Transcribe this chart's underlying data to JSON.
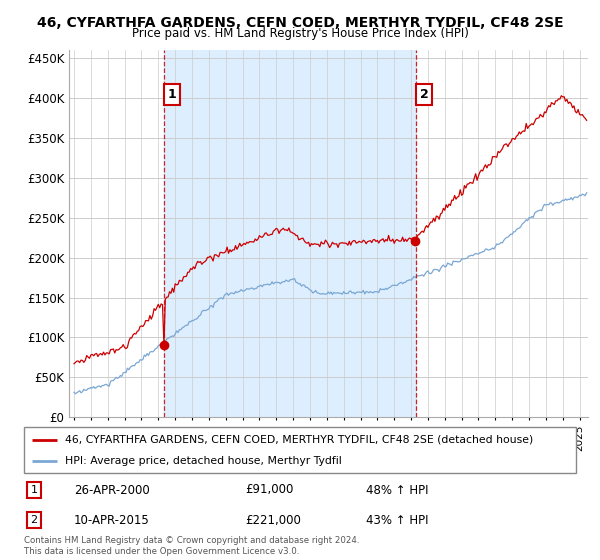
{
  "title": "46, CYFARTHFA GARDENS, CEFN COED, MERTHYR TYDFIL, CF48 2SE",
  "subtitle": "Price paid vs. HM Land Registry's House Price Index (HPI)",
  "legend_line1": "46, CYFARTHFA GARDENS, CEFN COED, MERTHYR TYDFIL, CF48 2SE (detached house)",
  "legend_line2": "HPI: Average price, detached house, Merthyr Tydfil",
  "annotation1_label": "1",
  "annotation1_date": "26-APR-2000",
  "annotation1_price": "£91,000",
  "annotation1_hpi": "48% ↑ HPI",
  "annotation2_label": "2",
  "annotation2_date": "10-APR-2015",
  "annotation2_price": "£221,000",
  "annotation2_hpi": "43% ↑ HPI",
  "footer": "Contains HM Land Registry data © Crown copyright and database right 2024.\nThis data is licensed under the Open Government Licence v3.0.",
  "ylim": [
    0,
    460000
  ],
  "sale1_year": 2000.32,
  "sale1_value": 91000,
  "sale2_year": 2015.27,
  "sale2_value": 221000,
  "red_color": "#cc0000",
  "blue_color": "#7ba7d4",
  "shade_color": "#ddeeff",
  "dashed_color": "#cc0000",
  "background_color": "#ffffff",
  "grid_color": "#cccccc"
}
